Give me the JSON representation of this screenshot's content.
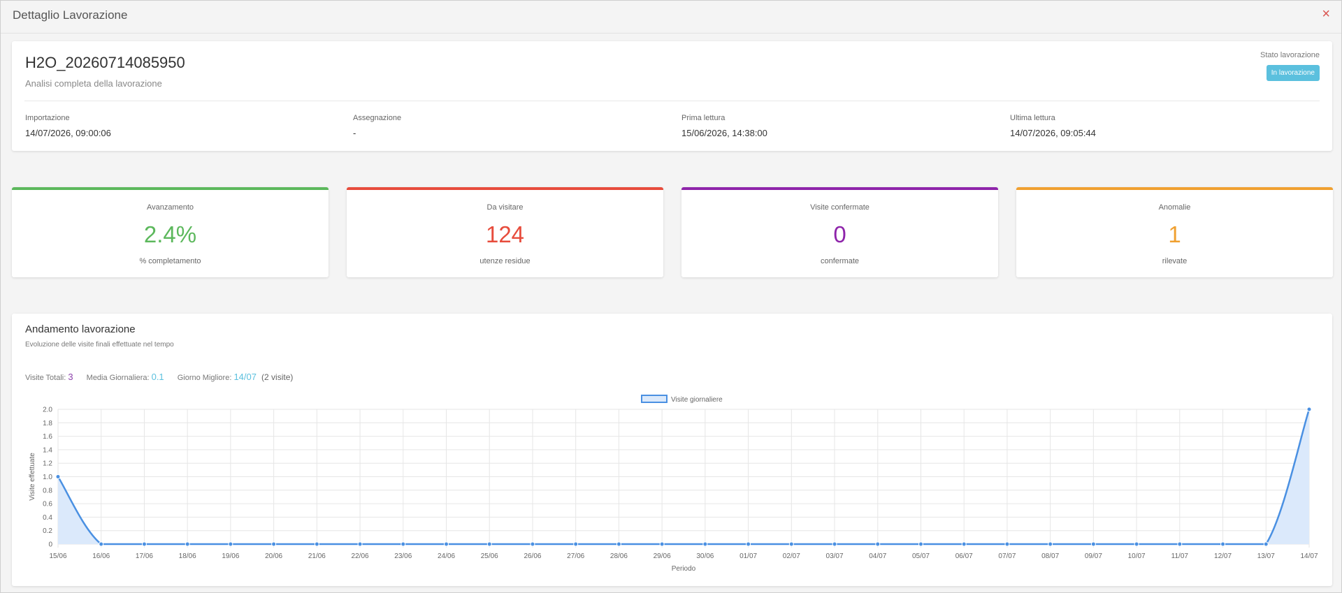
{
  "modal": {
    "title": "Dettaglio Lavorazione",
    "close_glyph": "×"
  },
  "job": {
    "name": "H2O_20260714085950",
    "subtitle": "Analisi completa della lavorazione",
    "status_label": "Stato lavorazione",
    "status_value": "In lavorazione",
    "status_color": "#5bc0de",
    "meta": [
      {
        "label": "Importazione",
        "value": "14/07/2026, 09:00:06"
      },
      {
        "label": "Assegnazione",
        "value": "-"
      },
      {
        "label": "Prima lettura",
        "value": "15/06/2026, 14:38:00"
      },
      {
        "label": "Ultima lettura",
        "value": "14/07/2026, 09:05:44"
      }
    ]
  },
  "stats": [
    {
      "title": "Avanzamento",
      "value": "2.4%",
      "desc": "% completamento",
      "color": "#5cb85c"
    },
    {
      "title": "Da visitare",
      "value": "124",
      "desc": "utenze residue",
      "color": "#e74c3c"
    },
    {
      "title": "Visite confermate",
      "value": "0",
      "desc": "confermate",
      "color": "#8e24aa"
    },
    {
      "title": "Anomalie",
      "value": "1",
      "desc": "rilevate",
      "color": "#f0a030"
    }
  ],
  "trend": {
    "title": "Andamento lavorazione",
    "subtitle": "Evoluzione delle visite finali effettuate nel tempo",
    "summary": {
      "total_label": "Visite Totali:",
      "total_value": "3",
      "avg_label": "Media Giornaliera:",
      "avg_value": "0.1",
      "best_label": "Giorno Migliore:",
      "best_value": "14/07",
      "best_note": "(2 visite)"
    }
  },
  "chart_data": {
    "type": "area",
    "x": [
      "15/06",
      "16/06",
      "17/06",
      "18/06",
      "19/06",
      "20/06",
      "21/06",
      "22/06",
      "23/06",
      "24/06",
      "25/06",
      "26/06",
      "27/06",
      "28/06",
      "29/06",
      "30/06",
      "01/07",
      "02/07",
      "03/07",
      "04/07",
      "05/07",
      "06/07",
      "07/07",
      "08/07",
      "09/07",
      "10/07",
      "11/07",
      "12/07",
      "13/07",
      "14/07"
    ],
    "series": [
      {
        "name": "Visite giornaliere",
        "values": [
          1,
          0,
          0,
          0,
          0,
          0,
          0,
          0,
          0,
          0,
          0,
          0,
          0,
          0,
          0,
          0,
          0,
          0,
          0,
          0,
          0,
          0,
          0,
          0,
          0,
          0,
          0,
          0,
          0,
          2
        ],
        "color": "#4a90e2",
        "fill": "#dbe9fb"
      }
    ],
    "xlabel": "Periodo",
    "ylabel": "Visite effettuate",
    "ylim": [
      0,
      2.0
    ],
    "yticks": [
      "0",
      "0.2",
      "0.4",
      "0.6",
      "0.8",
      "1.0",
      "1.2",
      "1.4",
      "1.6",
      "1.8",
      "2.0"
    ],
    "grid": true,
    "legend": "top-center"
  }
}
